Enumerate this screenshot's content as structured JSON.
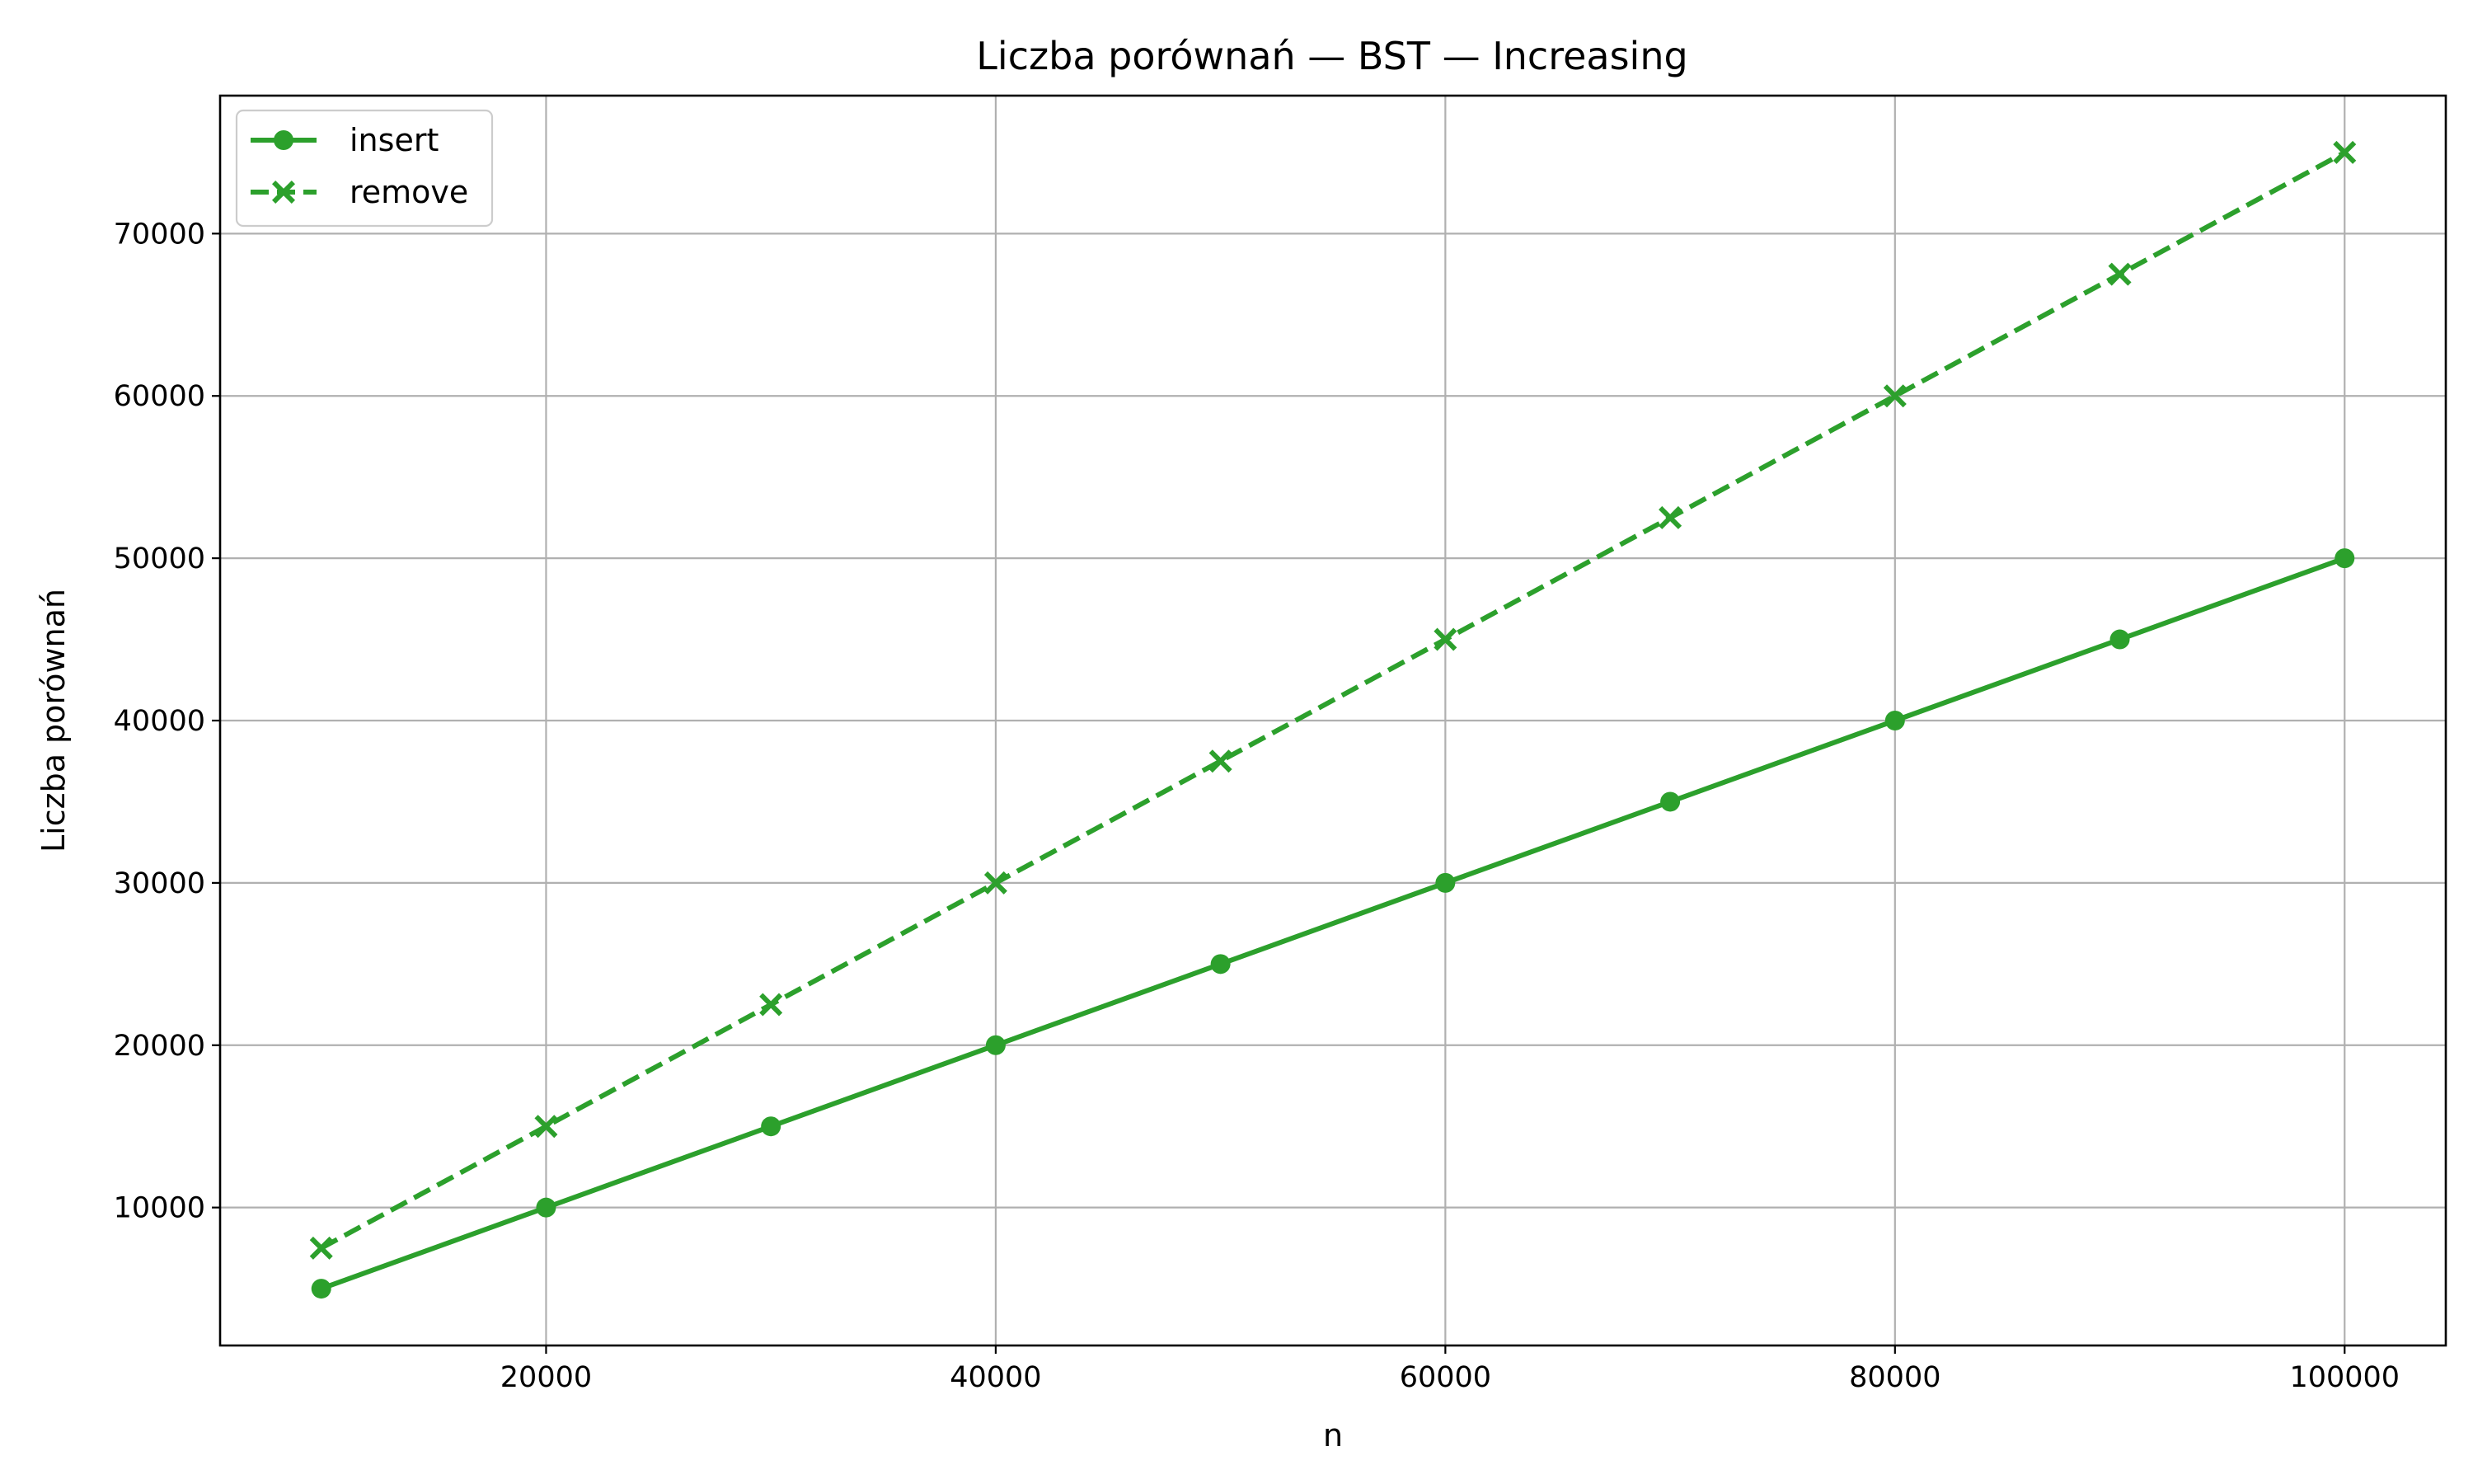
{
  "chart_data": {
    "type": "line",
    "title": "Liczba porównań — BST — Increasing",
    "xlabel": "n",
    "ylabel": "Liczba porównań",
    "xlim": [
      5500,
      104500
    ],
    "ylim": [
      1500,
      78500
    ],
    "x": [
      10000,
      20000,
      30000,
      40000,
      50000,
      60000,
      70000,
      80000,
      90000,
      100000
    ],
    "xticks": [
      20000,
      40000,
      60000,
      80000,
      100000
    ],
    "yticks": [
      10000,
      20000,
      30000,
      40000,
      50000,
      60000,
      70000
    ],
    "grid": true,
    "legend_position": "top-left",
    "series": [
      {
        "name": "insert",
        "values": [
          5000,
          10000,
          15000,
          20000,
          25000,
          30000,
          35000,
          40000,
          45000,
          50000
        ],
        "color": "#2ca02c",
        "line_style": "solid",
        "marker": "circle"
      },
      {
        "name": "remove",
        "values": [
          7500,
          15000,
          22500,
          30000,
          37500,
          45000,
          52500,
          60000,
          67500,
          75000
        ],
        "color": "#2ca02c",
        "line_style": "dashed",
        "marker": "x-filled"
      }
    ]
  }
}
